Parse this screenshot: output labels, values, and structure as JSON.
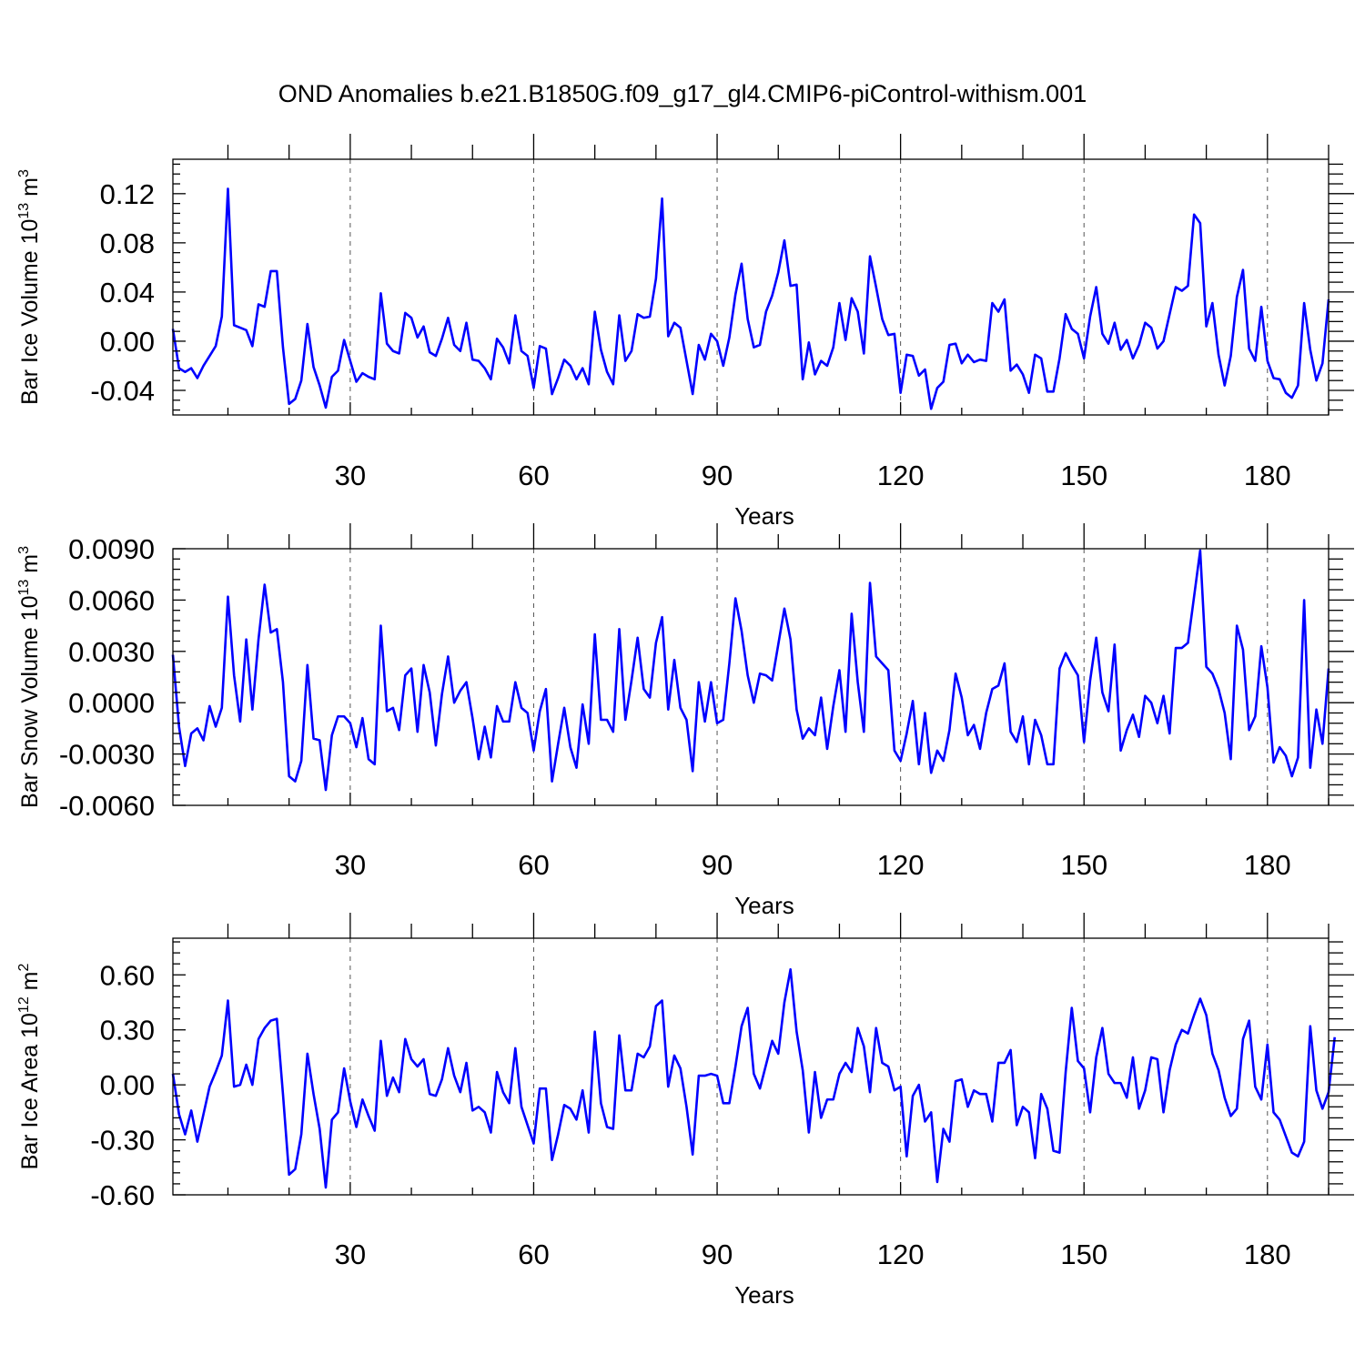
{
  "colors": {
    "line": "#0000ff",
    "grid": "#555555",
    "frame": "#000000"
  },
  "figure_title": "OND Anomalies b.e21.B1850G.f09_g17_gl4.CMIP6-piControl-withism.001",
  "chart_data": [
    {
      "type": "line",
      "title": "OND Anomalies b.e21.B1850G.f09_g17_gl4.CMIP6-piControl-withism.001",
      "xlabel": "Years",
      "ylabel": "Bar Ice Volume 10",
      "ylabel_exp": "13",
      "ylabel_unit": " m",
      "ylabel_unit_exp": "3",
      "xlim": [
        1,
        190
      ],
      "ylim": [
        -0.06,
        0.148
      ],
      "xticks": [
        30,
        60,
        90,
        120,
        150,
        180
      ],
      "xtick_labels": [
        "30",
        "60",
        "90",
        "120",
        "150",
        "180"
      ],
      "yticks": [
        -0.04,
        0.0,
        0.04,
        0.08,
        0.12
      ],
      "ytick_labels": [
        "-0.04",
        "0.00",
        "0.04",
        "0.08",
        "0.12"
      ],
      "grid": "vertical dashed at x ticks",
      "series": [
        {
          "name": "Bar Ice Volume",
          "x_start": 1,
          "values": [
            0.01,
            -0.022,
            -0.025,
            -0.022,
            -0.03,
            -0.02,
            -0.012,
            -0.004,
            0.02,
            0.124,
            0.013,
            0.011,
            0.009,
            -0.004,
            0.03,
            0.028,
            0.057,
            0.057,
            -0.005,
            -0.051,
            -0.047,
            -0.032,
            0.014,
            -0.021,
            -0.036,
            -0.054,
            -0.029,
            -0.024,
            0.001,
            -0.016,
            -0.033,
            -0.026,
            -0.029,
            -0.031,
            0.039,
            -0.002,
            -0.008,
            -0.01,
            0.023,
            0.019,
            0.003,
            0.012,
            -0.009,
            -0.012,
            0.002,
            0.019,
            -0.003,
            -0.008,
            0.015,
            -0.015,
            -0.016,
            -0.022,
            -0.031,
            0.002,
            -0.005,
            -0.018,
            0.021,
            -0.008,
            -0.012,
            -0.038,
            -0.004,
            -0.006,
            -0.043,
            -0.03,
            -0.015,
            -0.02,
            -0.031,
            -0.022,
            -0.035,
            0.024,
            -0.007,
            -0.025,
            -0.035,
            0.021,
            -0.016,
            -0.008,
            0.022,
            0.019,
            0.02,
            0.051,
            0.116,
            0.004,
            0.015,
            0.011,
            -0.016,
            -0.043,
            -0.003,
            -0.015,
            0.006,
            0.0,
            -0.02,
            0.003,
            0.038,
            0.063,
            0.018,
            -0.005,
            -0.003,
            0.024,
            0.037,
            0.056,
            0.082,
            0.045,
            0.046,
            -0.031,
            -0.001,
            -0.027,
            -0.016,
            -0.02,
            -0.005,
            0.031,
            0.001,
            0.035,
            0.024,
            -0.01,
            0.069,
            0.044,
            0.018,
            0.005,
            0.006,
            -0.042,
            -0.011,
            -0.012,
            -0.028,
            -0.023,
            -0.055,
            -0.038,
            -0.033,
            -0.003,
            -0.002,
            -0.018,
            -0.011,
            -0.017,
            -0.015,
            -0.016,
            0.031,
            0.024,
            0.034,
            -0.024,
            -0.019,
            -0.027,
            -0.042,
            -0.011,
            -0.014,
            -0.041,
            -0.041,
            -0.014,
            0.022,
            0.01,
            0.006,
            -0.014,
            0.02,
            0.044,
            0.006,
            -0.002,
            0.015,
            -0.007,
            0.001,
            -0.014,
            -0.003,
            0.015,
            0.011,
            -0.006,
            0.0,
            0.022,
            0.044,
            0.041,
            0.045,
            0.103,
            0.096,
            0.012,
            0.031,
            -0.011,
            -0.036,
            -0.012,
            0.036,
            0.058,
            -0.006,
            -0.016,
            0.028,
            -0.016,
            -0.03,
            -0.031,
            -0.042,
            -0.046,
            -0.036,
            0.031,
            -0.007,
            -0.032,
            -0.018,
            0.034
          ]
        }
      ]
    },
    {
      "type": "line",
      "title": "",
      "xlabel": "Years",
      "ylabel": "Bar Snow Volume 10",
      "ylabel_exp": "13",
      "ylabel_unit": " m",
      "ylabel_unit_exp": "3",
      "xlim": [
        1,
        190
      ],
      "ylim": [
        -0.006,
        0.009
      ],
      "xticks": [
        30,
        60,
        90,
        120,
        150,
        180
      ],
      "xtick_labels": [
        "30",
        "60",
        "90",
        "120",
        "150",
        "180"
      ],
      "yticks": [
        -0.006,
        -0.003,
        0.0,
        0.003,
        0.006,
        0.009
      ],
      "ytick_labels": [
        "-0.0060",
        "-0.0030",
        "0.0000",
        "0.0030",
        "0.0060",
        "0.0090"
      ],
      "grid": "vertical dashed at x ticks",
      "series": [
        {
          "name": "Bar Snow Volume",
          "x_start": 1,
          "values": [
            0.0028,
            -0.0014,
            -0.0037,
            -0.0018,
            -0.0015,
            -0.0022,
            -0.0002,
            -0.0014,
            -0.0003,
            0.0062,
            0.0016,
            -0.0011,
            0.0037,
            -0.0004,
            0.0037,
            0.0069,
            0.0041,
            0.0043,
            0.0012,
            -0.0043,
            -0.0046,
            -0.0034,
            0.0022,
            -0.0021,
            -0.0022,
            -0.0051,
            -0.0019,
            -0.0008,
            -0.0008,
            -0.0012,
            -0.0026,
            -0.0009,
            -0.0033,
            -0.0036,
            0.0045,
            -0.0005,
            -0.0003,
            -0.0016,
            0.0016,
            0.002,
            -0.0017,
            0.0022,
            0.0006,
            -0.0025,
            0.0005,
            0.0027,
            0.0,
            0.0007,
            0.0012,
            -0.0009,
            -0.0033,
            -0.0014,
            -0.0032,
            -0.0002,
            -0.0011,
            -0.0011,
            0.0012,
            -0.0003,
            -0.0006,
            -0.0028,
            -0.0005,
            0.0008,
            -0.0046,
            -0.0024,
            -0.0003,
            -0.0026,
            -0.0038,
            -0.0001,
            -0.0024,
            0.004,
            -0.001,
            -0.001,
            -0.0017,
            0.0043,
            -0.001,
            0.0013,
            0.0038,
            0.0008,
            0.0003,
            0.0035,
            0.005,
            -0.0004,
            0.0025,
            -0.0003,
            -0.001,
            -0.004,
            0.0012,
            -0.0011,
            0.0012,
            -0.0012,
            -0.001,
            0.0023,
            0.0061,
            0.0042,
            0.0016,
            0.0,
            0.0017,
            0.0016,
            0.0013,
            0.0034,
            0.0055,
            0.0037,
            -0.0004,
            -0.0021,
            -0.0015,
            -0.0019,
            0.0003,
            -0.0027,
            -0.0002,
            0.0019,
            -0.0017,
            0.0052,
            0.0012,
            -0.0017,
            0.007,
            0.0027,
            0.0023,
            0.0019,
            -0.0028,
            -0.0034,
            -0.0018,
            0.0001,
            -0.0036,
            -0.0006,
            -0.0041,
            -0.0028,
            -0.0034,
            -0.0016,
            0.0017,
            0.0003,
            -0.0019,
            -0.0013,
            -0.0027,
            -0.0006,
            0.0008,
            0.001,
            0.0023,
            -0.0017,
            -0.0023,
            -0.0008,
            -0.0036,
            -0.001,
            -0.0019,
            -0.0036,
            -0.0036,
            0.002,
            0.0029,
            0.0022,
            0.0016,
            -0.0023,
            0.0013,
            0.0038,
            0.0006,
            -0.0005,
            0.0034,
            -0.0028,
            -0.0016,
            -0.0007,
            -0.002,
            0.0004,
            0.0,
            -0.0012,
            0.0004,
            -0.0018,
            0.0032,
            0.0032,
            0.0035,
            0.0062,
            0.0089,
            0.0021,
            0.0017,
            0.0008,
            -0.0006,
            -0.0033,
            0.0045,
            0.0031,
            -0.0016,
            -0.0008,
            0.0033,
            0.0009,
            -0.0035,
            -0.0026,
            -0.0031,
            -0.0043,
            -0.0032,
            0.006,
            -0.0038,
            -0.0004,
            -0.0024,
            0.002
          ]
        }
      ]
    },
    {
      "type": "line",
      "title": "",
      "xlabel": "Years",
      "ylabel": "Bar Ice Area 10",
      "ylabel_exp": "12",
      "ylabel_unit": " m",
      "ylabel_unit_exp": "2",
      "xlim": [
        1,
        190
      ],
      "ylim": [
        -0.6,
        0.8
      ],
      "xticks": [
        30,
        60,
        90,
        120,
        150,
        180
      ],
      "xtick_labels": [
        "30",
        "60",
        "90",
        "120",
        "150",
        "180"
      ],
      "yticks": [
        -0.6,
        -0.3,
        0.0,
        0.3,
        0.6
      ],
      "ytick_labels": [
        "-0.60",
        "-0.30",
        "0.00",
        "0.30",
        "0.60"
      ],
      "grid": "vertical dashed at x ticks",
      "series": [
        {
          "name": "Bar Ice Area",
          "x_start": 1,
          "values": [
            0.06,
            -0.16,
            -0.27,
            -0.14,
            -0.31,
            -0.16,
            -0.01,
            0.07,
            0.16,
            0.46,
            -0.01,
            0.0,
            0.11,
            0.0,
            0.25,
            0.31,
            0.35,
            0.36,
            -0.05,
            -0.49,
            -0.46,
            -0.27,
            0.17,
            -0.05,
            -0.24,
            -0.56,
            -0.19,
            -0.15,
            0.09,
            -0.09,
            -0.23,
            -0.08,
            -0.17,
            -0.25,
            0.24,
            -0.06,
            0.04,
            -0.04,
            0.25,
            0.14,
            0.1,
            0.14,
            -0.05,
            -0.06,
            0.03,
            0.2,
            0.05,
            -0.04,
            0.12,
            -0.14,
            -0.12,
            -0.15,
            -0.26,
            0.07,
            -0.04,
            -0.1,
            0.2,
            -0.12,
            -0.22,
            -0.32,
            -0.02,
            -0.02,
            -0.41,
            -0.27,
            -0.11,
            -0.13,
            -0.19,
            -0.03,
            -0.26,
            0.29,
            -0.1,
            -0.23,
            -0.24,
            0.27,
            -0.03,
            -0.03,
            0.17,
            0.15,
            0.21,
            0.43,
            0.46,
            -0.01,
            0.16,
            0.09,
            -0.12,
            -0.38,
            0.05,
            0.05,
            0.06,
            0.05,
            -0.1,
            -0.1,
            0.1,
            0.32,
            0.42,
            0.06,
            -0.02,
            0.11,
            0.24,
            0.17,
            0.45,
            0.63,
            0.29,
            0.08,
            -0.26,
            0.07,
            -0.18,
            -0.08,
            -0.08,
            0.06,
            0.12,
            0.07,
            0.31,
            0.21,
            -0.04,
            0.31,
            0.12,
            0.1,
            -0.03,
            -0.01,
            -0.39,
            -0.06,
            0.0,
            -0.2,
            -0.15,
            -0.53,
            -0.24,
            -0.31,
            0.02,
            0.03,
            -0.12,
            -0.03,
            -0.05,
            -0.05,
            -0.2,
            0.12,
            0.12,
            0.19,
            -0.22,
            -0.12,
            -0.15,
            -0.4,
            -0.05,
            -0.13,
            -0.36,
            -0.37,
            0.07,
            0.42,
            0.13,
            0.09,
            -0.15,
            0.15,
            0.31,
            0.06,
            0.01,
            0.01,
            -0.07,
            0.15,
            -0.13,
            -0.03,
            0.15,
            0.14,
            -0.15,
            0.08,
            0.22,
            0.3,
            0.28,
            0.38,
            0.47,
            0.38,
            0.17,
            0.08,
            -0.07,
            -0.17,
            -0.13,
            0.25,
            0.35,
            -0.01,
            -0.08,
            0.22,
            -0.15,
            -0.19,
            -0.28,
            -0.37,
            -0.39,
            -0.31,
            0.32,
            -0.03,
            -0.13,
            -0.04,
            0.26
          ]
        }
      ]
    }
  ]
}
